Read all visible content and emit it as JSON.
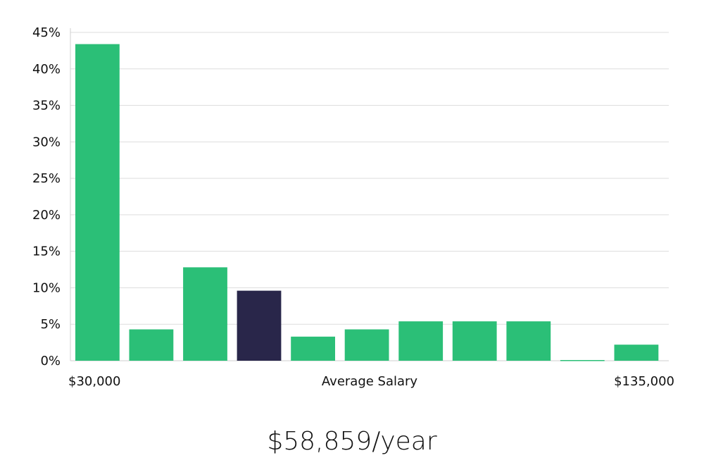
{
  "chart_data": {
    "type": "bar",
    "title": "",
    "xlabel": "Average Salary",
    "x_range_labels": {
      "min": "$30,000",
      "max": "$135,000"
    },
    "ylabel": "",
    "ylim": [
      0,
      45
    ],
    "yticks": [
      "0%",
      "5%",
      "10%",
      "15%",
      "20%",
      "25%",
      "30%",
      "35%",
      "40%",
      "45%"
    ],
    "grid": true,
    "values": [
      43.4,
      4.3,
      12.8,
      9.6,
      3.3,
      4.3,
      5.4,
      5.4,
      5.4,
      0.1,
      2.2
    ],
    "highlight_index": 3,
    "colors": {
      "bar": "#2bbf77",
      "highlight": "#29264a",
      "grid": "#dddddd",
      "axis": "#cfcfcf"
    }
  },
  "summary": {
    "salary_text": "$58,859/year"
  }
}
